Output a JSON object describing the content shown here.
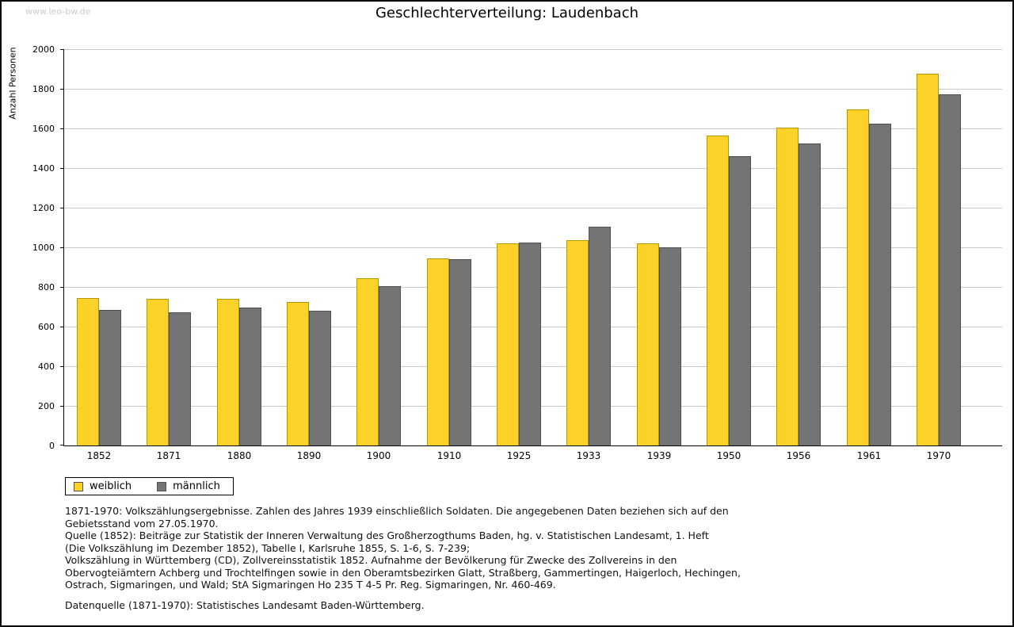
{
  "watermark": "www.leo-bw.de",
  "chart_data": {
    "type": "bar",
    "title": "Geschlechterverteilung: Laudenbach",
    "ylabel": "Anzahl Personen",
    "xlabel": "",
    "categories": [
      "1852",
      "1871",
      "1880",
      "1890",
      "1900",
      "1910",
      "1925",
      "1933",
      "1939",
      "1950",
      "1956",
      "1961",
      "1970"
    ],
    "series": [
      {
        "name": "weiblich",
        "color": "#FCD228",
        "border_color": "#B39700",
        "values": [
          745,
          740,
          740,
          725,
          845,
          945,
          1020,
          1035,
          1020,
          1565,
          1605,
          1695,
          1875
        ]
      },
      {
        "name": "männlich",
        "color": "#747474",
        "border_color": "#4F4F4F",
        "values": [
          685,
          670,
          695,
          680,
          805,
          940,
          1025,
          1105,
          1000,
          1460,
          1525,
          1625,
          1770
        ]
      }
    ],
    "ylim": [
      0,
      2000
    ],
    "ytick_step": 200,
    "grid": true,
    "legend_position": "bottom-left"
  },
  "notes": {
    "lines": [
      "1871-1970: Volkszählungsergebnisse. Zahlen des Jahres 1939 einschließlich Soldaten. Die angegebenen Daten beziehen sich auf den",
      "Gebietsstand vom 27.05.1970.",
      "Quelle (1852): Beiträge zur Statistik der Inneren Verwaltung des Großherzogthums Baden, hg. v. Statistischen Landesamt, 1. Heft",
      "(Die Volkszählung im Dezember 1852), Tabelle I, Karlsruhe 1855, S. 1-6, S. 7-239;",
      "Volkszählung in Württemberg (CD), Zollvereinsstatistik 1852. Aufnahme der Bevölkerung für Zwecke des Zollvereins in den",
      "Obervogteiämtern Achberg und Trochtelfingen sowie in den Oberamtsbezirken Glatt, Straßberg, Gammertingen, Haigerloch, Hechingen,",
      "Ostrach, Sigmaringen, und Wald; StA Sigmaringen Ho 235 T 4-5 Pr. Reg. Sigmaringen, Nr. 460-469.",
      "",
      "Datenquelle (1871-1970): Statistisches Landesamt Baden-Württemberg."
    ]
  }
}
